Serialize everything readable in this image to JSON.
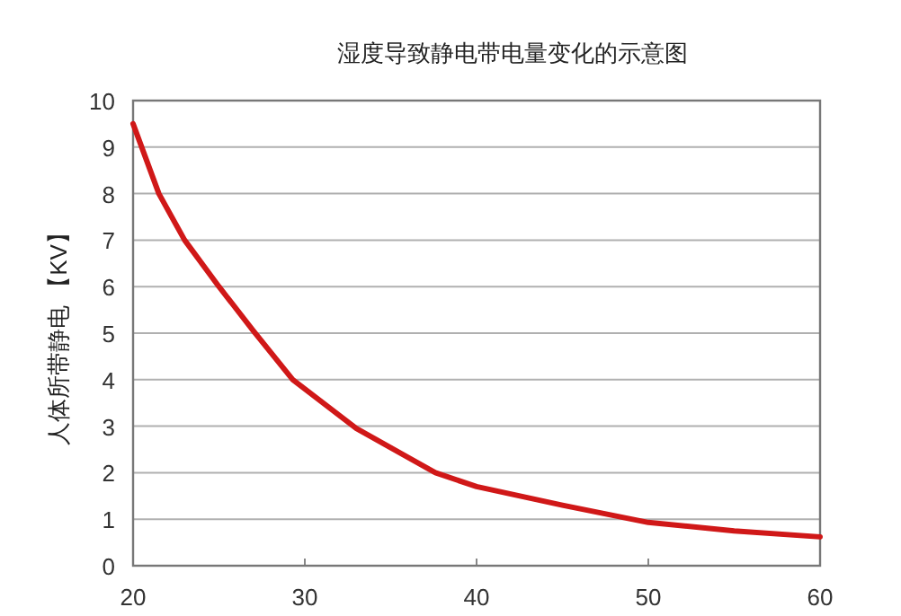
{
  "chart_data": {
    "type": "line",
    "title": "湿度导致静电带电量变化的示意图",
    "ylabel": "人体所带静电 【KV】",
    "x": [
      20,
      21.5,
      23,
      25,
      27,
      29.3,
      33,
      37.6,
      40,
      45,
      50,
      55,
      60
    ],
    "series": [
      {
        "color": "#d01818",
        "values": [
          9.5,
          8,
          7,
          6,
          5.05,
          4,
          2.95,
          2,
          1.7,
          1.3,
          0.93,
          0.75,
          0.62
        ]
      }
    ],
    "xlim": [
      20,
      60
    ],
    "ylim": [
      0,
      10
    ],
    "xticks": [
      20,
      30,
      40,
      50,
      60
    ],
    "yticks": [
      0,
      1,
      2,
      3,
      4,
      5,
      6,
      7,
      8,
      9,
      10
    ],
    "grid": "y"
  }
}
